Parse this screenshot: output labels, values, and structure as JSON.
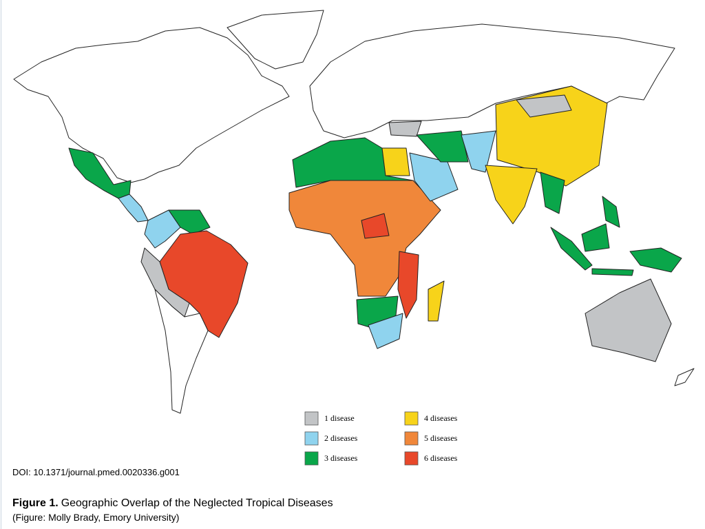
{
  "legend": {
    "items": [
      {
        "label": "1 disease",
        "color": "#c2c4c6"
      },
      {
        "label": "2 diseases",
        "color": "#8fd3ee"
      },
      {
        "label": "3 diseases",
        "color": "#0aa64a"
      },
      {
        "label": "4 diseases",
        "color": "#f7d31a"
      },
      {
        "label": "5 diseases",
        "color": "#f0873a"
      },
      {
        "label": "6 diseases",
        "color": "#e8482a"
      }
    ]
  },
  "doi": "DOI: 10.1371/journal.pmed.0020336.g001",
  "caption": {
    "label": "Figure 1.",
    "title": "Geographic Overlap of the Neglected Tropical Diseases",
    "credit": "(Figure: Molly Brady, Emory University)"
  }
}
